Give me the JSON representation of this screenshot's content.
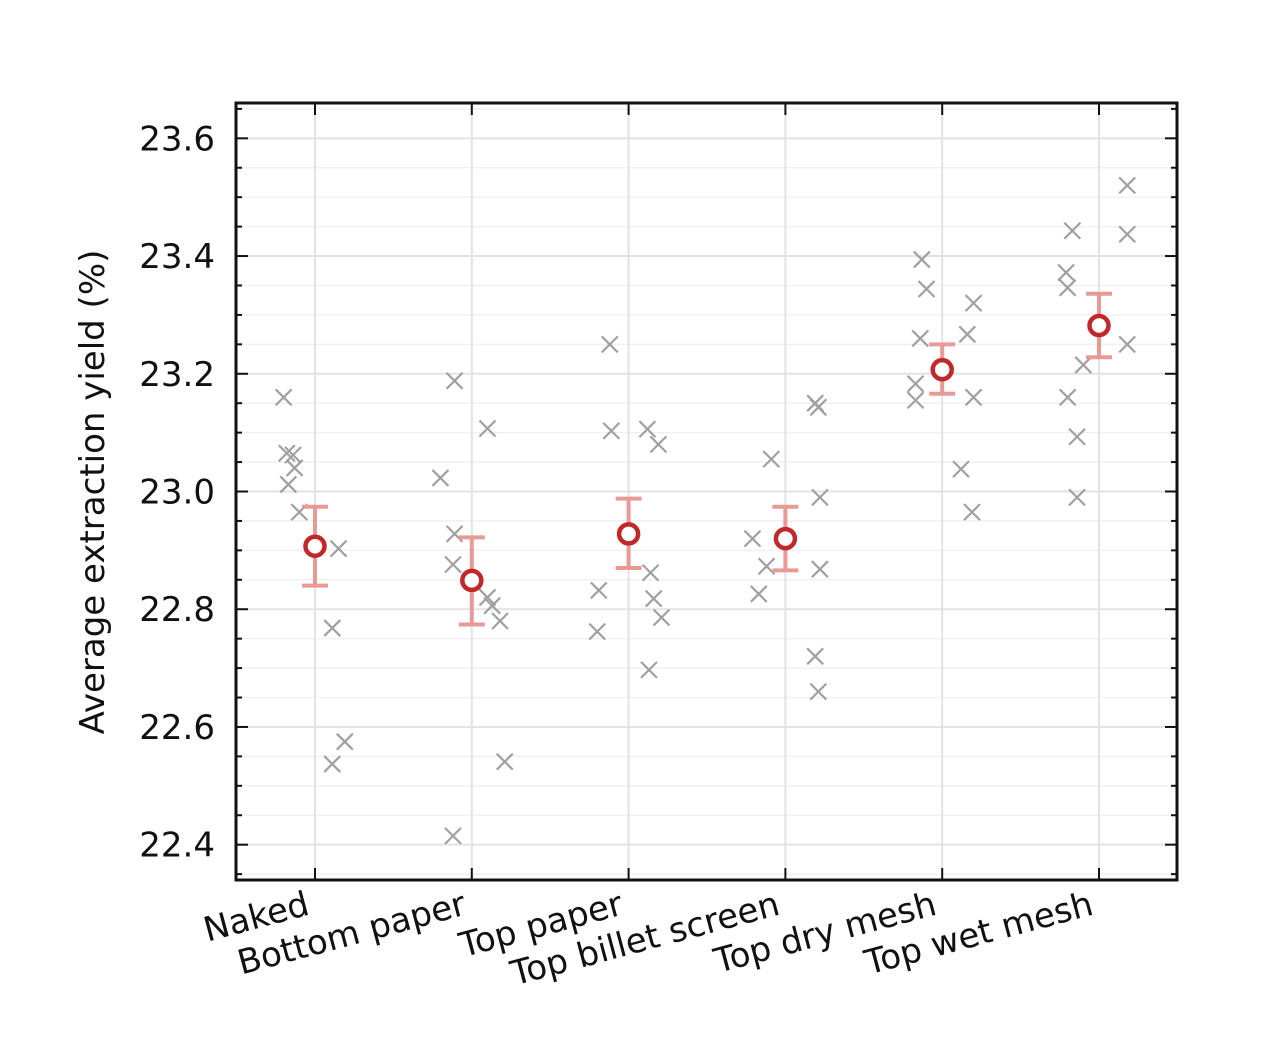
{
  "chart_data": {
    "type": "scatter",
    "ylabel": "Average extraction yield (%)",
    "xlabel": "",
    "title": "",
    "ylim": [
      22.34,
      23.66
    ],
    "yticks": [
      22.4,
      22.6,
      22.8,
      23.0,
      23.2,
      23.4,
      23.6
    ],
    "ytick_labels": [
      "22.4",
      "22.6",
      "22.8",
      "23.0",
      "23.2",
      "23.4",
      "23.6"
    ],
    "categories": [
      "Naked",
      "Bottom paper",
      "Top paper",
      "Top billet screen",
      "Top dry mesh",
      "Top wet mesh"
    ],
    "grid": true,
    "colors": {
      "mean_marker": "#c0282a",
      "error_bar": "#e89a96",
      "individual_point": "#a0a0a0",
      "grid": "#e3e3e3"
    },
    "series": [
      {
        "kind": "mean_with_error",
        "values": [
          22.907,
          22.849,
          22.928,
          22.92,
          23.207,
          23.282
        ],
        "error_low": [
          22.84,
          22.774,
          22.87,
          22.866,
          23.166,
          23.228
        ],
        "error_high": [
          22.974,
          22.922,
          22.988,
          22.974,
          23.25,
          23.336
        ]
      },
      {
        "kind": "individual_runs",
        "points": [
          {
            "category": 0,
            "offset": -0.2,
            "y": 23.16
          },
          {
            "category": 0,
            "offset": -0.18,
            "y": 23.065
          },
          {
            "category": 0,
            "offset": -0.14,
            "y": 23.062
          },
          {
            "category": 0,
            "offset": -0.13,
            "y": 23.04
          },
          {
            "category": 0,
            "offset": -0.17,
            "y": 23.012
          },
          {
            "category": 0,
            "offset": -0.1,
            "y": 22.965
          },
          {
            "category": 0,
            "offset": 0.15,
            "y": 22.903
          },
          {
            "category": 0,
            "offset": 0.11,
            "y": 22.768
          },
          {
            "category": 0,
            "offset": 0.19,
            "y": 22.575
          },
          {
            "category": 0,
            "offset": 0.11,
            "y": 22.537
          },
          {
            "category": 1,
            "offset": -0.11,
            "y": 23.188
          },
          {
            "category": 1,
            "offset": 0.1,
            "y": 23.107
          },
          {
            "category": 1,
            "offset": -0.2,
            "y": 23.023
          },
          {
            "category": 1,
            "offset": -0.11,
            "y": 22.928
          },
          {
            "category": 1,
            "offset": -0.12,
            "y": 22.876
          },
          {
            "category": 1,
            "offset": 0.1,
            "y": 22.82
          },
          {
            "category": 1,
            "offset": 0.13,
            "y": 22.806
          },
          {
            "category": 1,
            "offset": 0.18,
            "y": 22.78
          },
          {
            "category": 1,
            "offset": 0.21,
            "y": 22.541
          },
          {
            "category": 1,
            "offset": -0.12,
            "y": 22.415
          },
          {
            "category": 2,
            "offset": -0.12,
            "y": 23.25
          },
          {
            "category": 2,
            "offset": -0.11,
            "y": 23.103
          },
          {
            "category": 2,
            "offset": 0.12,
            "y": 23.106
          },
          {
            "category": 2,
            "offset": 0.19,
            "y": 23.08
          },
          {
            "category": 2,
            "offset": 0.14,
            "y": 22.862
          },
          {
            "category": 2,
            "offset": -0.19,
            "y": 22.832
          },
          {
            "category": 2,
            "offset": 0.16,
            "y": 22.818
          },
          {
            "category": 2,
            "offset": 0.21,
            "y": 22.786
          },
          {
            "category": 2,
            "offset": -0.2,
            "y": 22.762
          },
          {
            "category": 2,
            "offset": 0.13,
            "y": 22.697
          },
          {
            "category": 3,
            "offset": -0.09,
            "y": 23.055
          },
          {
            "category": 3,
            "offset": -0.21,
            "y": 22.92
          },
          {
            "category": 3,
            "offset": -0.12,
            "y": 22.873
          },
          {
            "category": 3,
            "offset": -0.17,
            "y": 22.826
          },
          {
            "category": 3,
            "offset": 0.19,
            "y": 23.15
          },
          {
            "category": 3,
            "offset": 0.21,
            "y": 23.143
          },
          {
            "category": 3,
            "offset": 0.22,
            "y": 22.99
          },
          {
            "category": 3,
            "offset": 0.22,
            "y": 22.868
          },
          {
            "category": 3,
            "offset": 0.19,
            "y": 22.72
          },
          {
            "category": 3,
            "offset": 0.21,
            "y": 22.66
          },
          {
            "category": 4,
            "offset": -0.13,
            "y": 23.394
          },
          {
            "category": 4,
            "offset": -0.1,
            "y": 23.344
          },
          {
            "category": 4,
            "offset": -0.14,
            "y": 23.26
          },
          {
            "category": 4,
            "offset": -0.17,
            "y": 23.183
          },
          {
            "category": 4,
            "offset": -0.17,
            "y": 23.155
          },
          {
            "category": 4,
            "offset": 0.2,
            "y": 23.32
          },
          {
            "category": 4,
            "offset": 0.16,
            "y": 23.267
          },
          {
            "category": 4,
            "offset": 0.2,
            "y": 23.16
          },
          {
            "category": 4,
            "offset": 0.12,
            "y": 23.038
          },
          {
            "category": 4,
            "offset": 0.19,
            "y": 22.965
          },
          {
            "category": 5,
            "offset": -0.17,
            "y": 23.443
          },
          {
            "category": 5,
            "offset": -0.21,
            "y": 23.372
          },
          {
            "category": 5,
            "offset": -0.2,
            "y": 23.346
          },
          {
            "category": 5,
            "offset": -0.1,
            "y": 23.215
          },
          {
            "category": 5,
            "offset": -0.2,
            "y": 23.16
          },
          {
            "category": 5,
            "offset": -0.14,
            "y": 23.093
          },
          {
            "category": 5,
            "offset": -0.14,
            "y": 22.99
          },
          {
            "category": 5,
            "offset": 0.18,
            "y": 23.52
          },
          {
            "category": 5,
            "offset": 0.18,
            "y": 23.437
          },
          {
            "category": 5,
            "offset": 0.18,
            "y": 23.25
          }
        ]
      }
    ]
  }
}
